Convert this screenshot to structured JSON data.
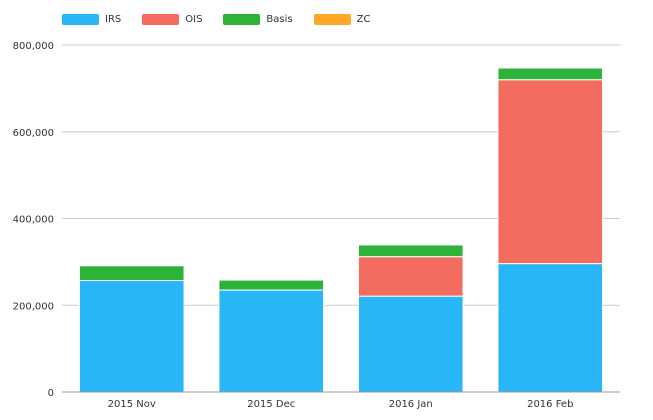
{
  "chart_data": {
    "type": "bar",
    "stacked": true,
    "categories": [
      "2015 Nov",
      "2015 Dec",
      "2016 Jan",
      "2016 Feb"
    ],
    "series": [
      {
        "name": "IRS",
        "color": "#29b6f6",
        "values": [
          257000,
          235000,
          221000,
          296000
        ]
      },
      {
        "name": "OIS",
        "color": "#f36c60",
        "values": [
          0,
          0,
          91000,
          424000
        ]
      },
      {
        "name": "Basis",
        "color": "#2eb33a",
        "values": [
          34000,
          23000,
          27000,
          27000
        ]
      },
      {
        "name": "ZC",
        "color": "#ffa726",
        "values": [
          0,
          0,
          0,
          0
        ]
      }
    ],
    "yticks": [
      "0",
      "200,000",
      "400,000",
      "600,000",
      "800,000"
    ],
    "ylim": [
      0,
      800000
    ],
    "title": "",
    "xlabel": "",
    "ylabel": "",
    "grid": true,
    "legend_position": "top-left"
  }
}
